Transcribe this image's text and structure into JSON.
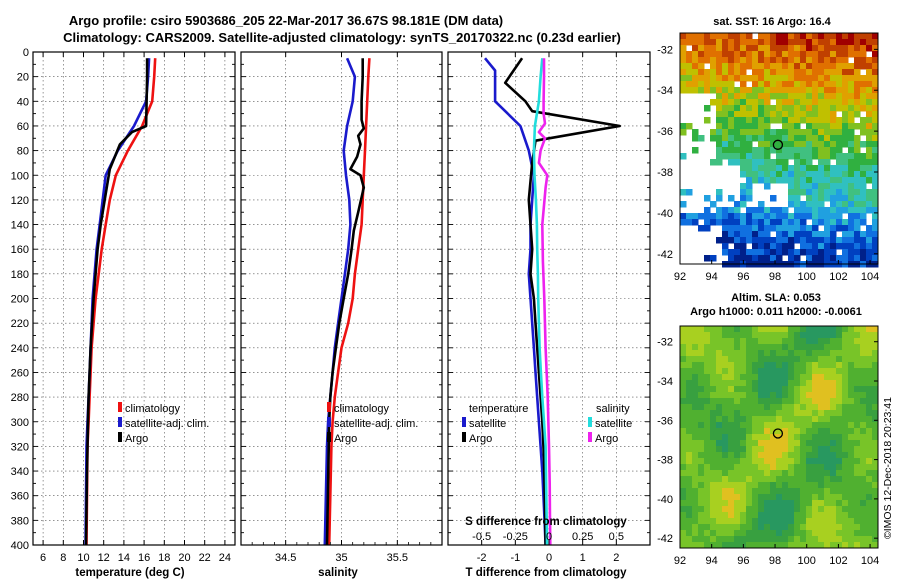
{
  "header": {
    "title_line1": "Argo profile: csiro 5903686_205 22-Mar-2017 36.67S 98.181E (DM data)",
    "title_line2": "Climatology: CARS2009. Satellite-adjusted climatology: synTS_20170322.nc (0.23d earlier)"
  },
  "colors": {
    "climatology": "#ee1111",
    "satellite_adj": "#1a1acc",
    "argo": "#000000",
    "temp_satellite": "#1a1acc",
    "sal_satellite": "#22dddd",
    "sal_argo": "#ee22ee",
    "grid": "#555555"
  },
  "chart_data": [
    {
      "id": "temperature",
      "type": "line",
      "xlabel": "temperature (deg C)",
      "ylabel": "",
      "xlim": [
        5,
        25
      ],
      "ylim": [
        400,
        0
      ],
      "xticks": [
        6,
        8,
        10,
        12,
        14,
        16,
        18,
        20,
        22,
        24
      ],
      "xtick_labels": [
        "6",
        "8",
        "10",
        "12",
        "14",
        "16",
        "18",
        "20",
        "22",
        "24"
      ],
      "yticks": [
        0,
        20,
        40,
        60,
        80,
        100,
        120,
        140,
        160,
        180,
        200,
        220,
        240,
        260,
        280,
        300,
        320,
        340,
        360,
        380,
        400
      ],
      "ytick_labels": [
        "0",
        "20",
        "40",
        "60",
        "80",
        "100",
        "120",
        "140",
        "160",
        "180",
        "200",
        "220",
        "240",
        "260",
        "280",
        "300",
        "320",
        "340",
        "360",
        "380",
        "400"
      ],
      "grid": true,
      "legend": [
        {
          "label": "climatology",
          "color": "#ee1111"
        },
        {
          "label": "satellite-adj. clim.",
          "color": "#1a1acc"
        },
        {
          "label": "Argo",
          "color": "#000000"
        }
      ],
      "series": [
        {
          "name": "climatology",
          "color": "#ee1111",
          "x": [
            17.1,
            17.0,
            16.8,
            15.8,
            14.4,
            13.2,
            12.6,
            12.2,
            11.8,
            11.5,
            11.2,
            11.0,
            10.8,
            10.7,
            10.6,
            10.5,
            10.4,
            10.35,
            10.3
          ],
          "y": [
            5,
            20,
            40,
            60,
            80,
            100,
            120,
            140,
            160,
            180,
            200,
            220,
            240,
            260,
            280,
            300,
            320,
            360,
            400
          ]
        },
        {
          "name": "satellite-adj. clim.",
          "color": "#1a1acc",
          "x": [
            16.5,
            16.4,
            16.2,
            15.0,
            13.4,
            12.2,
            11.9,
            11.6,
            11.3,
            11.1,
            10.9,
            10.8,
            10.7,
            10.6,
            10.5,
            10.4,
            10.3,
            10.25,
            10.2
          ],
          "y": [
            5,
            20,
            40,
            60,
            80,
            100,
            120,
            140,
            160,
            180,
            200,
            220,
            240,
            260,
            280,
            300,
            320,
            360,
            400
          ]
        },
        {
          "name": "Argo",
          "color": "#000000",
          "x": [
            16.3,
            16.3,
            16.25,
            16.2,
            14.8,
            13.6,
            12.6,
            12.1,
            11.7,
            11.4,
            11.2,
            11.0,
            10.85,
            10.7,
            10.6,
            10.5,
            10.45,
            10.4,
            10.35,
            10.3,
            10.25
          ],
          "y": [
            5,
            20,
            40,
            60,
            65,
            75,
            95,
            120,
            140,
            160,
            180,
            200,
            220,
            240,
            260,
            280,
            300,
            320,
            340,
            370,
            400
          ]
        }
      ]
    },
    {
      "id": "salinity",
      "type": "line",
      "xlabel": "salinity",
      "ylabel": "",
      "xlim": [
        34.1,
        35.9
      ],
      "ylim": [
        400,
        0
      ],
      "xticks": [
        34.5,
        35,
        35.5
      ],
      "xtick_labels": [
        "34.5",
        "35",
        "35.5"
      ],
      "minor_xticks": [
        34.2,
        34.3,
        34.4,
        34.6,
        34.7,
        34.8,
        34.9,
        35.1,
        35.2,
        35.3,
        35.4,
        35.6,
        35.7,
        35.8
      ],
      "grid": true,
      "legend": [
        {
          "label": "climatology",
          "color": "#ee1111"
        },
        {
          "label": "satellite-adj. clim.",
          "color": "#1a1acc"
        },
        {
          "label": "Argo",
          "color": "#000000"
        }
      ],
      "series": [
        {
          "name": "climatology",
          "color": "#ee1111",
          "x": [
            35.25,
            35.24,
            35.23,
            35.22,
            35.21,
            35.2,
            35.19,
            35.18,
            35.15,
            35.12,
            35.1,
            35.06,
            35.0,
            34.97,
            34.94,
            34.92,
            34.91,
            34.9,
            34.89
          ],
          "y": [
            5,
            20,
            40,
            60,
            80,
            100,
            120,
            140,
            160,
            180,
            200,
            220,
            240,
            260,
            280,
            300,
            320,
            360,
            400
          ]
        },
        {
          "name": "satellite-adj. clim.",
          "color": "#1a1acc",
          "x": [
            35.05,
            35.12,
            35.1,
            35.05,
            35.02,
            35.04,
            35.07,
            35.08,
            35.06,
            35.03,
            35.0,
            34.97,
            34.94,
            34.92,
            34.9,
            34.88,
            34.87,
            34.86,
            34.85
          ],
          "y": [
            5,
            20,
            40,
            60,
            80,
            100,
            120,
            140,
            160,
            180,
            200,
            220,
            240,
            260,
            280,
            300,
            320,
            360,
            400
          ]
        },
        {
          "name": "Argo",
          "color": "#000000",
          "x": [
            35.19,
            35.19,
            35.18,
            35.18,
            35.2,
            35.15,
            35.17,
            35.14,
            35.08,
            35.17,
            35.2,
            35.15,
            35.11,
            35.09,
            35.06,
            35.02,
            34.98,
            34.95,
            34.92,
            34.9,
            34.89,
            34.88,
            34.87
          ],
          "y": [
            5,
            20,
            40,
            55,
            62,
            68,
            75,
            85,
            95,
            100,
            110,
            130,
            145,
            160,
            180,
            200,
            220,
            240,
            260,
            280,
            300,
            350,
            400
          ]
        }
      ]
    },
    {
      "id": "difference",
      "type": "line",
      "xlabel": "T difference from climatology",
      "top_axis_label": "S difference from climatology",
      "xlim": [
        -3,
        3
      ],
      "ylim": [
        400,
        0
      ],
      "xticks": [
        -2,
        -1,
        0,
        1,
        2
      ],
      "xtick_labels": [
        "-2",
        "-1",
        "0",
        "1",
        "2"
      ],
      "top_xticks": [
        -0.5,
        -0.25,
        0,
        0.25,
        0.5
      ],
      "top_xtick_labels": [
        "-0.5",
        "-0.25",
        "0",
        "0.25",
        "0.5"
      ],
      "grid": true,
      "legend_temperature_title": "temperature",
      "legend_salinity_title": "salinity",
      "legend": [
        {
          "label": "satellite",
          "color": "#1a1acc",
          "group": "temperature"
        },
        {
          "label": "Argo",
          "color": "#000000",
          "group": "temperature"
        },
        {
          "label": "satellite",
          "color": "#22dddd",
          "group": "salinity"
        },
        {
          "label": "Argo",
          "color": "#ee22ee",
          "group": "salinity"
        }
      ],
      "series": [
        {
          "name": "temperature satellite",
          "color": "#1a1acc",
          "x": [
            -1.9,
            -1.6,
            -1.6,
            -0.85,
            -0.6,
            -0.45,
            -0.5,
            -0.55,
            -0.55,
            -0.6,
            -0.55,
            -0.5,
            -0.45,
            -0.4,
            -0.35,
            -0.3,
            -0.25,
            -0.2,
            -0.15,
            -0.1
          ],
          "y": [
            5,
            15,
            40,
            60,
            80,
            100,
            120,
            140,
            160,
            180,
            200,
            220,
            240,
            260,
            280,
            300,
            320,
            340,
            370,
            400
          ]
        },
        {
          "name": "temperature Argo",
          "color": "#000000",
          "x": [
            -0.8,
            -1.3,
            -0.7,
            -0.5,
            2.1,
            -0.4,
            -0.5,
            -0.6,
            -0.5,
            -0.55,
            -0.45,
            -0.4,
            -0.35,
            -0.3,
            -0.25,
            -0.2,
            -0.15,
            -0.12,
            -0.1
          ],
          "y": [
            5,
            25,
            40,
            48,
            60,
            72,
            90,
            120,
            160,
            180,
            200,
            220,
            240,
            260,
            280,
            300,
            330,
            370,
            400
          ]
        },
        {
          "name": "salinity satellite",
          "color": "#22dddd",
          "x": [
            -0.2,
            -0.25,
            -0.3,
            -0.42,
            -0.45,
            -0.43,
            -0.39,
            -0.36,
            -0.35,
            -0.33,
            -0.32,
            -0.3,
            -0.28,
            -0.24,
            -0.2,
            -0.15,
            -0.1,
            -0.08,
            -0.06
          ],
          "y": [
            5,
            20,
            40,
            60,
            80,
            100,
            120,
            140,
            160,
            180,
            200,
            220,
            240,
            260,
            280,
            300,
            320,
            360,
            400
          ]
        },
        {
          "name": "salinity Argo",
          "color": "#ee22ee",
          "x": [
            -0.15,
            -0.15,
            -0.16,
            -0.16,
            -0.12,
            -0.3,
            -0.12,
            -0.25,
            -0.3,
            -0.05,
            -0.1,
            -0.2,
            -0.18,
            -0.14,
            -0.1,
            -0.04,
            0.0,
            0.02,
            0.03,
            0.04
          ],
          "y": [
            5,
            20,
            40,
            50,
            58,
            65,
            70,
            80,
            90,
            100,
            110,
            140,
            170,
            200,
            240,
            280,
            320,
            350,
            380,
            400
          ]
        }
      ]
    },
    {
      "id": "sst_map",
      "type": "heatmap",
      "title": "sat. SST: 16 Argo: 16.4",
      "xlim": [
        92,
        104.5
      ],
      "ylim": [
        -42.5,
        -31.2
      ],
      "xticks": [
        92,
        94,
        96,
        98,
        100,
        102,
        104
      ],
      "xtick_labels": [
        "92",
        "94",
        "96",
        "98",
        "100",
        "102",
        "104"
      ],
      "yticks": [
        -32,
        -34,
        -36,
        -38,
        -40,
        -42
      ],
      "ytick_labels": [
        "-32",
        "-34",
        "-36",
        "-38",
        "-40",
        "-42"
      ],
      "profile_marker": {
        "lon": 98.181,
        "lat": -36.67
      }
    },
    {
      "id": "sla_map",
      "type": "heatmap",
      "title_line1": "Altim. SLA: 0.053",
      "title_line2": "Argo h1000: 0.011 h2000: -0.0061",
      "xlim": [
        92,
        104.5
      ],
      "ylim": [
        -42.5,
        -31.2
      ],
      "xticks": [
        92,
        94,
        96,
        98,
        100,
        102,
        104
      ],
      "xtick_labels": [
        "92",
        "94",
        "96",
        "98",
        "100",
        "102",
        "104"
      ],
      "yticks": [
        -32,
        -34,
        -36,
        -38,
        -40,
        -42
      ],
      "ytick_labels": [
        "-32",
        "-34",
        "-36",
        "-38",
        "-40",
        "-42"
      ],
      "profile_marker": {
        "lon": 98.181,
        "lat": -36.67
      }
    }
  ],
  "credit": "©IMOS 12-Dec-2018 20:23:41"
}
